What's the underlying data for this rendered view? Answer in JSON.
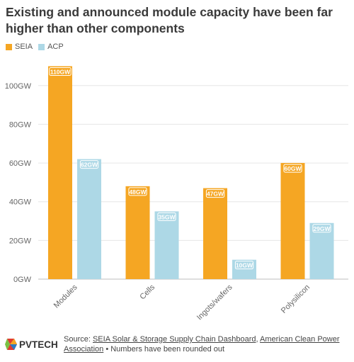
{
  "title": "Existing and announced module capacity have been far higher than other components",
  "legend": {
    "seia_label": "SEIA",
    "acp_label": "ACP"
  },
  "colors": {
    "seia": "#F5A623",
    "acp": "#ADD8E6",
    "grid": "#e6e6e6",
    "axis_text": "#666666"
  },
  "footer": {
    "logo_text": "PVTECH",
    "source_prefix": "Source: ",
    "link1": "SEIA Solar & Storage Supply Chain Dashboard",
    "separator": ", ",
    "link2": "American Clean Power Association",
    "suffix": " • Numbers have been rounded out"
  },
  "chart_data": {
    "type": "bar",
    "categories": [
      "Modules",
      "Cells",
      "Ingots/wafers",
      "Polysilicon"
    ],
    "series": [
      {
        "name": "SEIA",
        "values": [
          110,
          48,
          47,
          60
        ],
        "labels": [
          "110GW",
          "48GW",
          "47GW",
          "60GW"
        ]
      },
      {
        "name": "ACP",
        "values": [
          62,
          35,
          10,
          29
        ],
        "labels": [
          "62GW",
          "35GW",
          "10GW",
          "29GW"
        ]
      }
    ],
    "yticks": [
      "0GW",
      "20GW",
      "40GW",
      "60GW",
      "80GW",
      "100GW"
    ],
    "ytick_values": [
      0,
      20,
      40,
      60,
      80,
      100
    ],
    "ylim": [
      0,
      112
    ],
    "grid": true,
    "legend_position": "top-left"
  }
}
